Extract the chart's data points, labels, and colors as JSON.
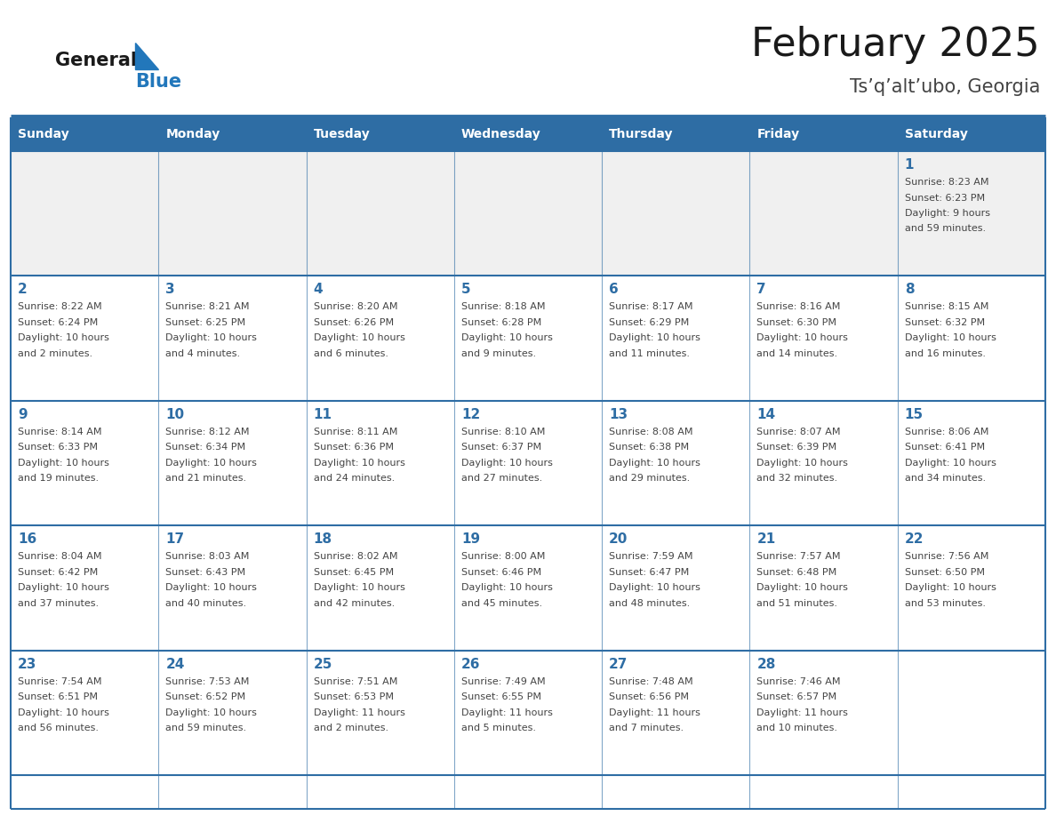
{
  "title": "February 2025",
  "subtitle": "Ts’q’alt’ubo, Georgia",
  "days_of_week": [
    "Sunday",
    "Monday",
    "Tuesday",
    "Wednesday",
    "Thursday",
    "Friday",
    "Saturday"
  ],
  "header_bg": "#2e6da4",
  "header_text": "#ffffff",
  "cell_bg_white": "#ffffff",
  "cell_bg_gray": "#f0f0f0",
  "border_color": "#2e6da4",
  "day_number_color": "#2e6da4",
  "info_text_color": "#444444",
  "title_color": "#1a1a1a",
  "subtitle_color": "#444444",
  "logo_general_color": "#1a1a1a",
  "logo_blue_color": "#2277bb",
  "logo_triangle_color": "#2277bb",
  "weeks": [
    [
      {
        "day": 0,
        "info": ""
      },
      {
        "day": 0,
        "info": ""
      },
      {
        "day": 0,
        "info": ""
      },
      {
        "day": 0,
        "info": ""
      },
      {
        "day": 0,
        "info": ""
      },
      {
        "day": 0,
        "info": ""
      },
      {
        "day": 1,
        "info": "Sunrise: 8:23 AM\nSunset: 6:23 PM\nDaylight: 9 hours\nand 59 minutes."
      }
    ],
    [
      {
        "day": 2,
        "info": "Sunrise: 8:22 AM\nSunset: 6:24 PM\nDaylight: 10 hours\nand 2 minutes."
      },
      {
        "day": 3,
        "info": "Sunrise: 8:21 AM\nSunset: 6:25 PM\nDaylight: 10 hours\nand 4 minutes."
      },
      {
        "day": 4,
        "info": "Sunrise: 8:20 AM\nSunset: 6:26 PM\nDaylight: 10 hours\nand 6 minutes."
      },
      {
        "day": 5,
        "info": "Sunrise: 8:18 AM\nSunset: 6:28 PM\nDaylight: 10 hours\nand 9 minutes."
      },
      {
        "day": 6,
        "info": "Sunrise: 8:17 AM\nSunset: 6:29 PM\nDaylight: 10 hours\nand 11 minutes."
      },
      {
        "day": 7,
        "info": "Sunrise: 8:16 AM\nSunset: 6:30 PM\nDaylight: 10 hours\nand 14 minutes."
      },
      {
        "day": 8,
        "info": "Sunrise: 8:15 AM\nSunset: 6:32 PM\nDaylight: 10 hours\nand 16 minutes."
      }
    ],
    [
      {
        "day": 9,
        "info": "Sunrise: 8:14 AM\nSunset: 6:33 PM\nDaylight: 10 hours\nand 19 minutes."
      },
      {
        "day": 10,
        "info": "Sunrise: 8:12 AM\nSunset: 6:34 PM\nDaylight: 10 hours\nand 21 minutes."
      },
      {
        "day": 11,
        "info": "Sunrise: 8:11 AM\nSunset: 6:36 PM\nDaylight: 10 hours\nand 24 minutes."
      },
      {
        "day": 12,
        "info": "Sunrise: 8:10 AM\nSunset: 6:37 PM\nDaylight: 10 hours\nand 27 minutes."
      },
      {
        "day": 13,
        "info": "Sunrise: 8:08 AM\nSunset: 6:38 PM\nDaylight: 10 hours\nand 29 minutes."
      },
      {
        "day": 14,
        "info": "Sunrise: 8:07 AM\nSunset: 6:39 PM\nDaylight: 10 hours\nand 32 minutes."
      },
      {
        "day": 15,
        "info": "Sunrise: 8:06 AM\nSunset: 6:41 PM\nDaylight: 10 hours\nand 34 minutes."
      }
    ],
    [
      {
        "day": 16,
        "info": "Sunrise: 8:04 AM\nSunset: 6:42 PM\nDaylight: 10 hours\nand 37 minutes."
      },
      {
        "day": 17,
        "info": "Sunrise: 8:03 AM\nSunset: 6:43 PM\nDaylight: 10 hours\nand 40 minutes."
      },
      {
        "day": 18,
        "info": "Sunrise: 8:02 AM\nSunset: 6:45 PM\nDaylight: 10 hours\nand 42 minutes."
      },
      {
        "day": 19,
        "info": "Sunrise: 8:00 AM\nSunset: 6:46 PM\nDaylight: 10 hours\nand 45 minutes."
      },
      {
        "day": 20,
        "info": "Sunrise: 7:59 AM\nSunset: 6:47 PM\nDaylight: 10 hours\nand 48 minutes."
      },
      {
        "day": 21,
        "info": "Sunrise: 7:57 AM\nSunset: 6:48 PM\nDaylight: 10 hours\nand 51 minutes."
      },
      {
        "day": 22,
        "info": "Sunrise: 7:56 AM\nSunset: 6:50 PM\nDaylight: 10 hours\nand 53 minutes."
      }
    ],
    [
      {
        "day": 23,
        "info": "Sunrise: 7:54 AM\nSunset: 6:51 PM\nDaylight: 10 hours\nand 56 minutes."
      },
      {
        "day": 24,
        "info": "Sunrise: 7:53 AM\nSunset: 6:52 PM\nDaylight: 10 hours\nand 59 minutes."
      },
      {
        "day": 25,
        "info": "Sunrise: 7:51 AM\nSunset: 6:53 PM\nDaylight: 11 hours\nand 2 minutes."
      },
      {
        "day": 26,
        "info": "Sunrise: 7:49 AM\nSunset: 6:55 PM\nDaylight: 11 hours\nand 5 minutes."
      },
      {
        "day": 27,
        "info": "Sunrise: 7:48 AM\nSunset: 6:56 PM\nDaylight: 11 hours\nand 7 minutes."
      },
      {
        "day": 28,
        "info": "Sunrise: 7:46 AM\nSunset: 6:57 PM\nDaylight: 11 hours\nand 10 minutes."
      },
      {
        "day": 0,
        "info": ""
      }
    ]
  ]
}
